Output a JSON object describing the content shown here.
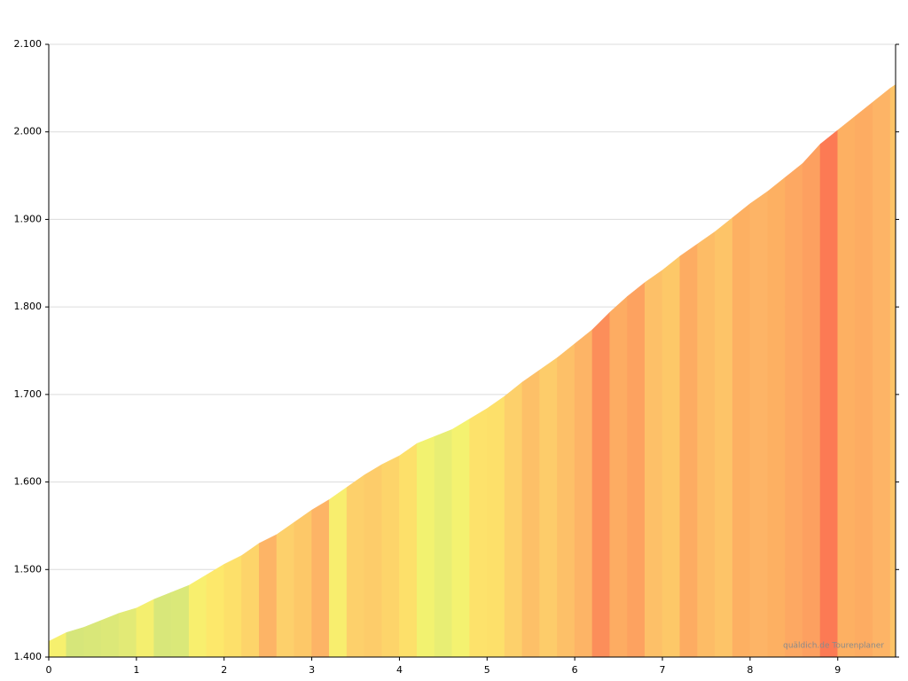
{
  "chart_data": {
    "type": "elevation-profile",
    "watermark": "quäldich.de Tourenplaner",
    "x": [
      0,
      0.2,
      0.4,
      0.6,
      0.8,
      1.0,
      1.2,
      1.4,
      1.6,
      1.8,
      2.0,
      2.2,
      2.4,
      2.6,
      2.8,
      3.0,
      3.2,
      3.4,
      3.6,
      3.8,
      4.0,
      4.2,
      4.4,
      4.6,
      4.8,
      5.0,
      5.2,
      5.4,
      5.6,
      5.8,
      6.0,
      6.2,
      6.4,
      6.6,
      6.8,
      7.0,
      7.2,
      7.4,
      7.6,
      7.8,
      8.0,
      8.2,
      8.4,
      8.6,
      8.8,
      9.0,
      9.2,
      9.4,
      9.6,
      9.66
    ],
    "series": [
      {
        "values": [
          1418,
          1428,
          1434,
          1442,
          1450,
          1456,
          1466,
          1474,
          1482,
          1494,
          1506,
          1516,
          1530,
          1540,
          1554,
          1568,
          1580,
          1594,
          1608,
          1620,
          1630,
          1644,
          1652,
          1660,
          1672,
          1684,
          1698,
          1714,
          1728,
          1742,
          1758,
          1774,
          1794,
          1812,
          1828,
          1842,
          1858,
          1872,
          1886,
          1902,
          1918,
          1932,
          1948,
          1964,
          1986,
          2002,
          2018,
          2034,
          2050,
          2054
        ],
        "colors": [
          "#f6f06e",
          "#d6e67a",
          "#d9e779",
          "#dce878",
          "#e2ea76",
          "#f4ef6f",
          "#d8e77a",
          "#dae879",
          "#f8ef6e",
          "#fde86b",
          "#fde06a",
          "#fdd46a",
          "#fdb466",
          "#fdd06b",
          "#fdc868",
          "#fdb466",
          "#f8ee6e",
          "#fdd06b",
          "#fdcc6a",
          "#fdd46a",
          "#fde06a",
          "#f2f270",
          "#e8ee74",
          "#f4f270",
          "#fde26b",
          "#fde06a",
          "#fdd06b",
          "#fdc068",
          "#fdcc6a",
          "#fdc068",
          "#fdb466",
          "#fc8e5a",
          "#fdac62",
          "#fda260",
          "#fdc068",
          "#fdc868",
          "#fdac62",
          "#fdbc66",
          "#fdc468",
          "#fdb062",
          "#fdb466",
          "#fdb062",
          "#fda862",
          "#fda060",
          "#fc7a54",
          "#fdb062",
          "#fdac62",
          "#fdb466",
          "#fdc468"
        ]
      }
    ],
    "xlim": [
      0,
      9.66
    ],
    "ylim": [
      1400,
      2100
    ],
    "xticks": [
      0,
      1,
      2,
      3,
      4,
      5,
      6,
      7,
      8,
      9
    ],
    "yticks": [
      {
        "value": 1400,
        "label": "1.400"
      },
      {
        "value": 1500,
        "label": "1.500"
      },
      {
        "value": 1600,
        "label": "1.600"
      },
      {
        "value": 1700,
        "label": "1.700"
      },
      {
        "value": 1800,
        "label": "1.800"
      },
      {
        "value": 1900,
        "label": "1.900"
      },
      {
        "value": 2000,
        "label": "2.000"
      },
      {
        "value": 2100,
        "label": "2.100"
      }
    ],
    "grid": true
  }
}
